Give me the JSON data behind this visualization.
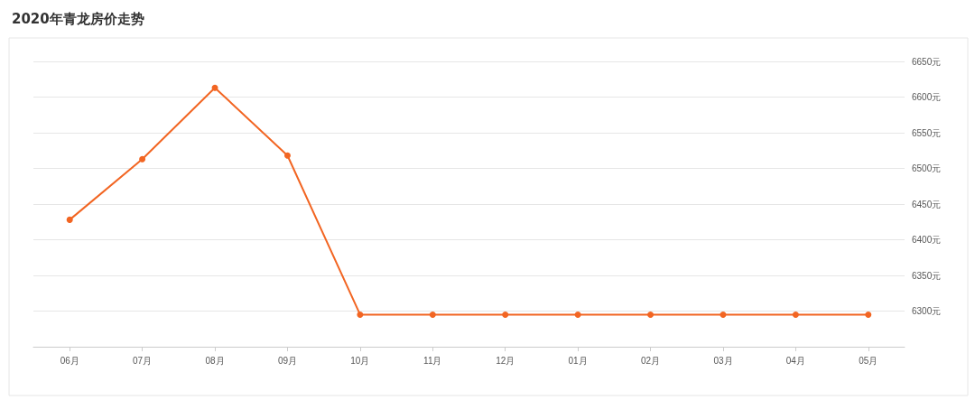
{
  "chart_data": {
    "type": "line",
    "title": "2020年青龙房价走势",
    "categories": [
      "06月",
      "07月",
      "08月",
      "09月",
      "10月",
      "11月",
      "12月",
      "01月",
      "02月",
      "03月",
      "04月",
      "05月"
    ],
    "series": [
      {
        "color": "#f26522",
        "values": [
          6428,
          6513,
          6613,
          6518,
          6295,
          6295,
          6295,
          6295,
          6295,
          6295,
          6295,
          6295
        ]
      }
    ],
    "ylim": [
      6250,
      6650
    ],
    "yticks": [
      {
        "value": 6300,
        "label": "6300元"
      },
      {
        "value": 6350,
        "label": "6350元"
      },
      {
        "value": 6400,
        "label": "6400元"
      },
      {
        "value": 6450,
        "label": "6450元"
      },
      {
        "value": 6500,
        "label": "6500元"
      },
      {
        "value": 6550,
        "label": "6550元"
      },
      {
        "value": 6600,
        "label": "6600元"
      },
      {
        "value": 6650,
        "label": "6650元"
      }
    ],
    "grid": "y",
    "marker": "circle",
    "line_style": "solid"
  }
}
